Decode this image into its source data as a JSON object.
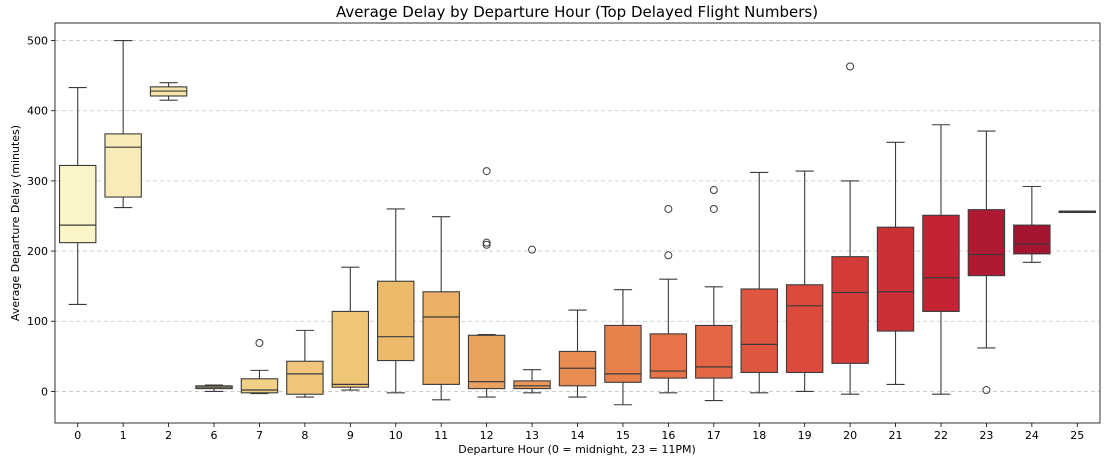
{
  "chart_data": {
    "type": "box",
    "title": "Average Delay by Departure Hour (Top Delayed Flight Numbers)",
    "xlabel": "Departure Hour (0 = midnight, 23 = 11PM)",
    "ylabel": "Average Departure Delay (minutes)",
    "ylim": [
      -45,
      525
    ],
    "yticks": [
      0,
      100,
      200,
      300,
      400,
      500
    ],
    "grid": "y",
    "categories": [
      "0",
      "1",
      "2",
      "6",
      "7",
      "8",
      "9",
      "10",
      "11",
      "12",
      "13",
      "14",
      "15",
      "16",
      "17",
      "18",
      "19",
      "20",
      "21",
      "22",
      "23",
      "24",
      "25"
    ],
    "boxes": [
      {
        "whislo": 124,
        "q1": 212,
        "med": 237,
        "q3": 322,
        "whishi": 433,
        "fliers": [],
        "color": "#fbf4c6"
      },
      {
        "whislo": 262,
        "q1": 277,
        "med": 348,
        "q3": 367,
        "whishi": 500,
        "fliers": [],
        "color": "#f7ecb8"
      },
      {
        "whislo": 415,
        "q1": 421,
        "med": 428,
        "q3": 434,
        "whishi": 440,
        "fliers": [],
        "color": "#f6e4a8"
      },
      {
        "whislo": 0,
        "q1": 4,
        "med": 6,
        "q3": 8,
        "whishi": 9,
        "fliers": [],
        "color": "#f5d896"
      },
      {
        "whislo": -3,
        "q1": -2,
        "med": 2,
        "q3": 18,
        "whishi": 30,
        "fliers": [
          69
        ],
        "color": "#f3d088"
      },
      {
        "whislo": -8,
        "q1": -4,
        "med": 25,
        "q3": 43,
        "whishi": 87,
        "fliers": [],
        "color": "#f0c67d"
      },
      {
        "whislo": 2,
        "q1": 6,
        "med": 10,
        "q3": 114,
        "whishi": 177,
        "fliers": [],
        "color": "#efc576"
      },
      {
        "whislo": -2,
        "q1": 44,
        "med": 78,
        "q3": 157,
        "whishi": 260,
        "fliers": [],
        "color": "#ecba6b"
      },
      {
        "whislo": -12,
        "q1": 10,
        "med": 106,
        "q3": 142,
        "whishi": 249,
        "fliers": [],
        "color": "#ebb066"
      },
      {
        "whislo": -8,
        "q1": 4,
        "med": 14,
        "q3": 80,
        "whishi": 81,
        "fliers": [
          314,
          212,
          209
        ],
        "color": "#e9a35e"
      },
      {
        "whislo": -2,
        "q1": 4,
        "med": 8,
        "q3": 15,
        "whishi": 31,
        "fliers": [
          202
        ],
        "color": "#e8985a"
      },
      {
        "whislo": -8,
        "q1": 8,
        "med": 33,
        "q3": 57,
        "whishi": 116,
        "fliers": [],
        "color": "#e88c52"
      },
      {
        "whislo": -19,
        "q1": 13,
        "med": 25,
        "q3": 94,
        "whishi": 145,
        "fliers": [],
        "color": "#e8804c"
      },
      {
        "whislo": -2,
        "q1": 19,
        "med": 29,
        "q3": 82,
        "whishi": 160,
        "fliers": [
          260,
          194
        ],
        "color": "#e77348"
      },
      {
        "whislo": -13,
        "q1": 19,
        "med": 35,
        "q3": 94,
        "whishi": 149,
        "fliers": [
          287,
          260
        ],
        "color": "#e56644"
      },
      {
        "whislo": -2,
        "q1": 27,
        "med": 67,
        "q3": 146,
        "whishi": 312,
        "fliers": [],
        "color": "#e05640"
      },
      {
        "whislo": 0,
        "q1": 27,
        "med": 122,
        "q3": 152,
        "whishi": 314,
        "fliers": [],
        "color": "#dc4a3e"
      },
      {
        "whislo": -4,
        "q1": 40,
        "med": 141,
        "q3": 192,
        "whishi": 300,
        "fliers": [
          463
        ],
        "color": "#d43c3a"
      },
      {
        "whislo": 10,
        "q1": 86,
        "med": 142,
        "q3": 234,
        "whishi": 355,
        "fliers": [],
        "color": "#cb3036"
      },
      {
        "whislo": -4,
        "q1": 114,
        "med": 162,
        "q3": 251,
        "whishi": 380,
        "fliers": [],
        "color": "#c32434"
      },
      {
        "whislo": 62,
        "q1": 165,
        "med": 195,
        "q3": 259,
        "whishi": 371,
        "fliers": [
          2
        ],
        "color": "#ae1a32"
      },
      {
        "whislo": 184,
        "q1": 196,
        "med": 210,
        "q3": 237,
        "whishi": 292,
        "fliers": [],
        "color": "#a51530"
      },
      {
        "whislo": 255,
        "q1": 255,
        "med": 256,
        "q3": 257,
        "whishi": 257,
        "fliers": [],
        "color": "#9b122e"
      }
    ]
  }
}
